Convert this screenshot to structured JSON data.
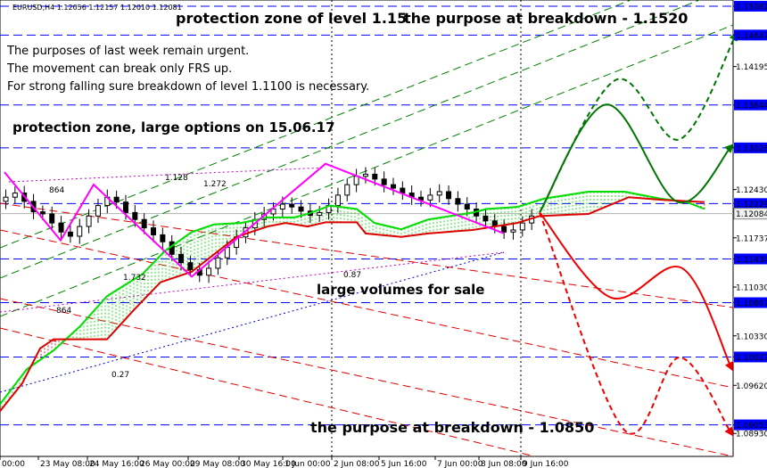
{
  "header": {
    "symbol_info": "EURUSD,H4  1.12056 1.12157 1.12010 1.12081"
  },
  "annotations": {
    "top_left": "protection zone of level 1.15",
    "top_right": "the purpose at breakdown - 1.1520",
    "note_1": "The purposes of last week remain urgent.",
    "note_2": "The movement can break only FRS up.",
    "note_3": "For strong falling sure breakdown of level 1.1100 is necessary.",
    "protection_options": "protection zone, large options on 15.06.17",
    "large_volumes": "large volumes for sale",
    "bottom_purpose": "the purpose at breakdown - 1.0850"
  },
  "fib_labels": [
    "864",
    "1.128",
    "1.272",
    "1.732",
    "864",
    "0.87",
    "0.27"
  ],
  "colors": {
    "level_line": "#0000ff",
    "zigzag": "#ff00ff",
    "fast_line": "#00dd00",
    "slow_line": "#dd0000",
    "forecast_up": "#007700",
    "forecast_down": "#ee0000",
    "candle": "#000000",
    "channel": "#008000"
  },
  "chart_data": {
    "type": "candlestick",
    "symbol": "EURUSD",
    "timeframe": "H4",
    "ylim": [
      1.086,
      1.1515
    ],
    "x_tick_labels": [
      "00:00",
      "23 May 08:00",
      "24 May 16:00",
      "26 May 00:00",
      "29 May 08:00",
      "30 May 16:00",
      "1 Jun 00:00",
      "2 Jun 08:00",
      "5 Jun 16:00",
      "7 Jun 00:00",
      "8 Jun 08:00",
      "9 Jun 16:00"
    ],
    "y_ticks": [
      1.15061,
      1.14647,
      1.14195,
      1.13644,
      1.13028,
      1.1243,
      1.12229,
      1.12084,
      1.11737,
      1.11434,
      1.1103,
      1.10807,
      1.1033,
      1.10027,
      1.0962,
      1.09053,
      1.0893
    ],
    "highlighted_levels": [
      1.15061,
      1.14647,
      1.13644,
      1.13028,
      1.12229,
      1.12084,
      1.11434,
      1.10807,
      1.10027,
      1.09053
    ],
    "current_price": 1.12084,
    "close_path": [
      1.1232,
      1.1238,
      1.1226,
      1.1211,
      1.1208,
      1.1195,
      1.1182,
      1.1176,
      1.119,
      1.1205,
      1.122,
      1.1232,
      1.1225,
      1.121,
      1.12,
      1.1188,
      1.1178,
      1.1168,
      1.115,
      1.1138,
      1.1128,
      1.112,
      1.113,
      1.1145,
      1.116,
      1.1175,
      1.1188,
      1.12,
      1.1208,
      1.1215,
      1.1222,
      1.1218,
      1.1212,
      1.1206,
      1.121,
      1.122,
      1.1235,
      1.125,
      1.1262,
      1.1265,
      1.1258,
      1.125,
      1.1245,
      1.1238,
      1.1232,
      1.1228,
      1.1235,
      1.124,
      1.123,
      1.1222,
      1.1215,
      1.1205,
      1.1198,
      1.119,
      1.1182,
      1.1185,
      1.1195,
      1.1205
    ],
    "fast_line": [
      [
        0,
        1.0935
      ],
      [
        30,
        1.0985
      ],
      [
        60,
        1.1012
      ],
      [
        90,
        1.1047
      ],
      [
        120,
        1.109
      ],
      [
        160,
        1.1122
      ],
      [
        185,
        1.1155
      ],
      [
        215,
        1.1182
      ],
      [
        240,
        1.1193
      ],
      [
        270,
        1.1195
      ],
      [
        300,
        1.1203
      ],
      [
        330,
        1.1203
      ],
      [
        345,
        1.1208
      ],
      [
        370,
        1.122
      ],
      [
        400,
        1.1215
      ],
      [
        420,
        1.1195
      ],
      [
        450,
        1.1186
      ],
      [
        480,
        1.12
      ],
      [
        505,
        1.1205
      ],
      [
        530,
        1.121
      ],
      [
        545,
        1.1215
      ],
      [
        580,
        1.1218
      ],
      [
        610,
        1.123
      ],
      [
        660,
        1.124
      ],
      [
        700,
        1.124
      ],
      [
        740,
        1.123
      ],
      [
        770,
        1.1225
      ],
      [
        790,
        1.1215
      ]
    ],
    "slow_line": [
      [
        0,
        1.0925
      ],
      [
        25,
        1.0965
      ],
      [
        45,
        1.1015
      ],
      [
        60,
        1.1028
      ],
      [
        95,
        1.1028
      ],
      [
        120,
        1.1028
      ],
      [
        150,
        1.107
      ],
      [
        180,
        1.111
      ],
      [
        215,
        1.1125
      ],
      [
        240,
        1.115
      ],
      [
        265,
        1.1175
      ],
      [
        300,
        1.119
      ],
      [
        320,
        1.1195
      ],
      [
        345,
        1.119
      ],
      [
        365,
        1.1196
      ],
      [
        400,
        1.1196
      ],
      [
        410,
        1.118
      ],
      [
        450,
        1.1175
      ],
      [
        480,
        1.118
      ],
      [
        530,
        1.1185
      ],
      [
        555,
        1.119
      ],
      [
        580,
        1.1195
      ],
      [
        605,
        1.1205
      ],
      [
        660,
        1.1208
      ],
      [
        705,
        1.1232
      ],
      [
        745,
        1.1228
      ],
      [
        790,
        1.1225
      ]
    ],
    "zigzag": [
      [
        5,
        1.1268
      ],
      [
        68,
        1.117
      ],
      [
        105,
        1.125
      ],
      [
        215,
        1.1118
      ],
      [
        365,
        1.128
      ],
      [
        565,
        1.118
      ]
    ],
    "forecast_up_solid": [
      [
        605,
        1.121
      ],
      [
        680,
        1.1365
      ],
      [
        760,
        1.1225
      ],
      [
        820,
        1.1305
      ]
    ],
    "forecast_up_dashed": [
      [
        605,
        1.121
      ],
      [
        690,
        1.14
      ],
      [
        762,
        1.1315
      ],
      [
        825,
        1.1465
      ]
    ],
    "forecast_down_solid": [
      [
        605,
        1.121
      ],
      [
        685,
        1.1088
      ],
      [
        765,
        1.113
      ],
      [
        820,
        1.0987
      ]
    ],
    "forecast_down_dashed": [
      [
        605,
        1.121
      ],
      [
        700,
        1.0898
      ],
      [
        762,
        1.1002
      ],
      [
        820,
        1.0893
      ]
    ]
  }
}
